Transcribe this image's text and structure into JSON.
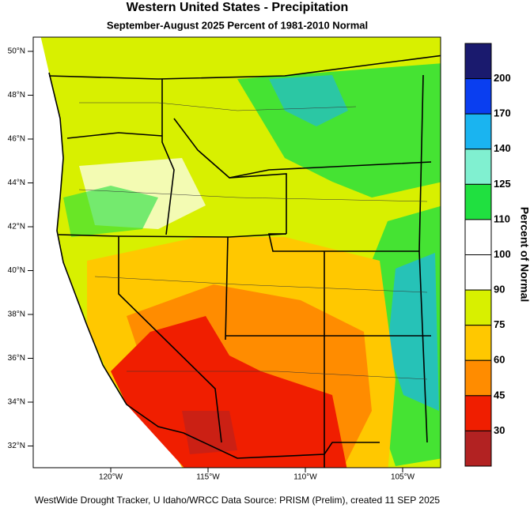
{
  "title": "Western United States - Precipitation",
  "subtitle": "September-August 2025  Percent of 1981-2010 Normal",
  "latitude_labels": [
    "50°N",
    "48°N",
    "46°N",
    "44°N",
    "42°N",
    "40°N",
    "38°N",
    "36°N",
    "34°N",
    "32°N"
  ],
  "longitude_labels": [
    "120°W",
    "115°W",
    "110°W",
    "105°W"
  ],
  "colorbar": {
    "title": "Percent of Normal",
    "labels": [
      200,
      170,
      140,
      125,
      110,
      100,
      90,
      75,
      60,
      45,
      30
    ],
    "colors": [
      "#1a1a6e",
      "#0a3ef0",
      "#1ab4f0",
      "#80f0d0",
      "#20e040",
      "#ffffff",
      "#ffffff",
      "#d8f000",
      "#ffc800",
      "#ff8c00",
      "#f01e00",
      "#b22222"
    ]
  },
  "footer": "WestWide Drought Tracker, U Idaho/WRCC Data Source: PRISM (Prelim), created 11 SEP 2025"
}
